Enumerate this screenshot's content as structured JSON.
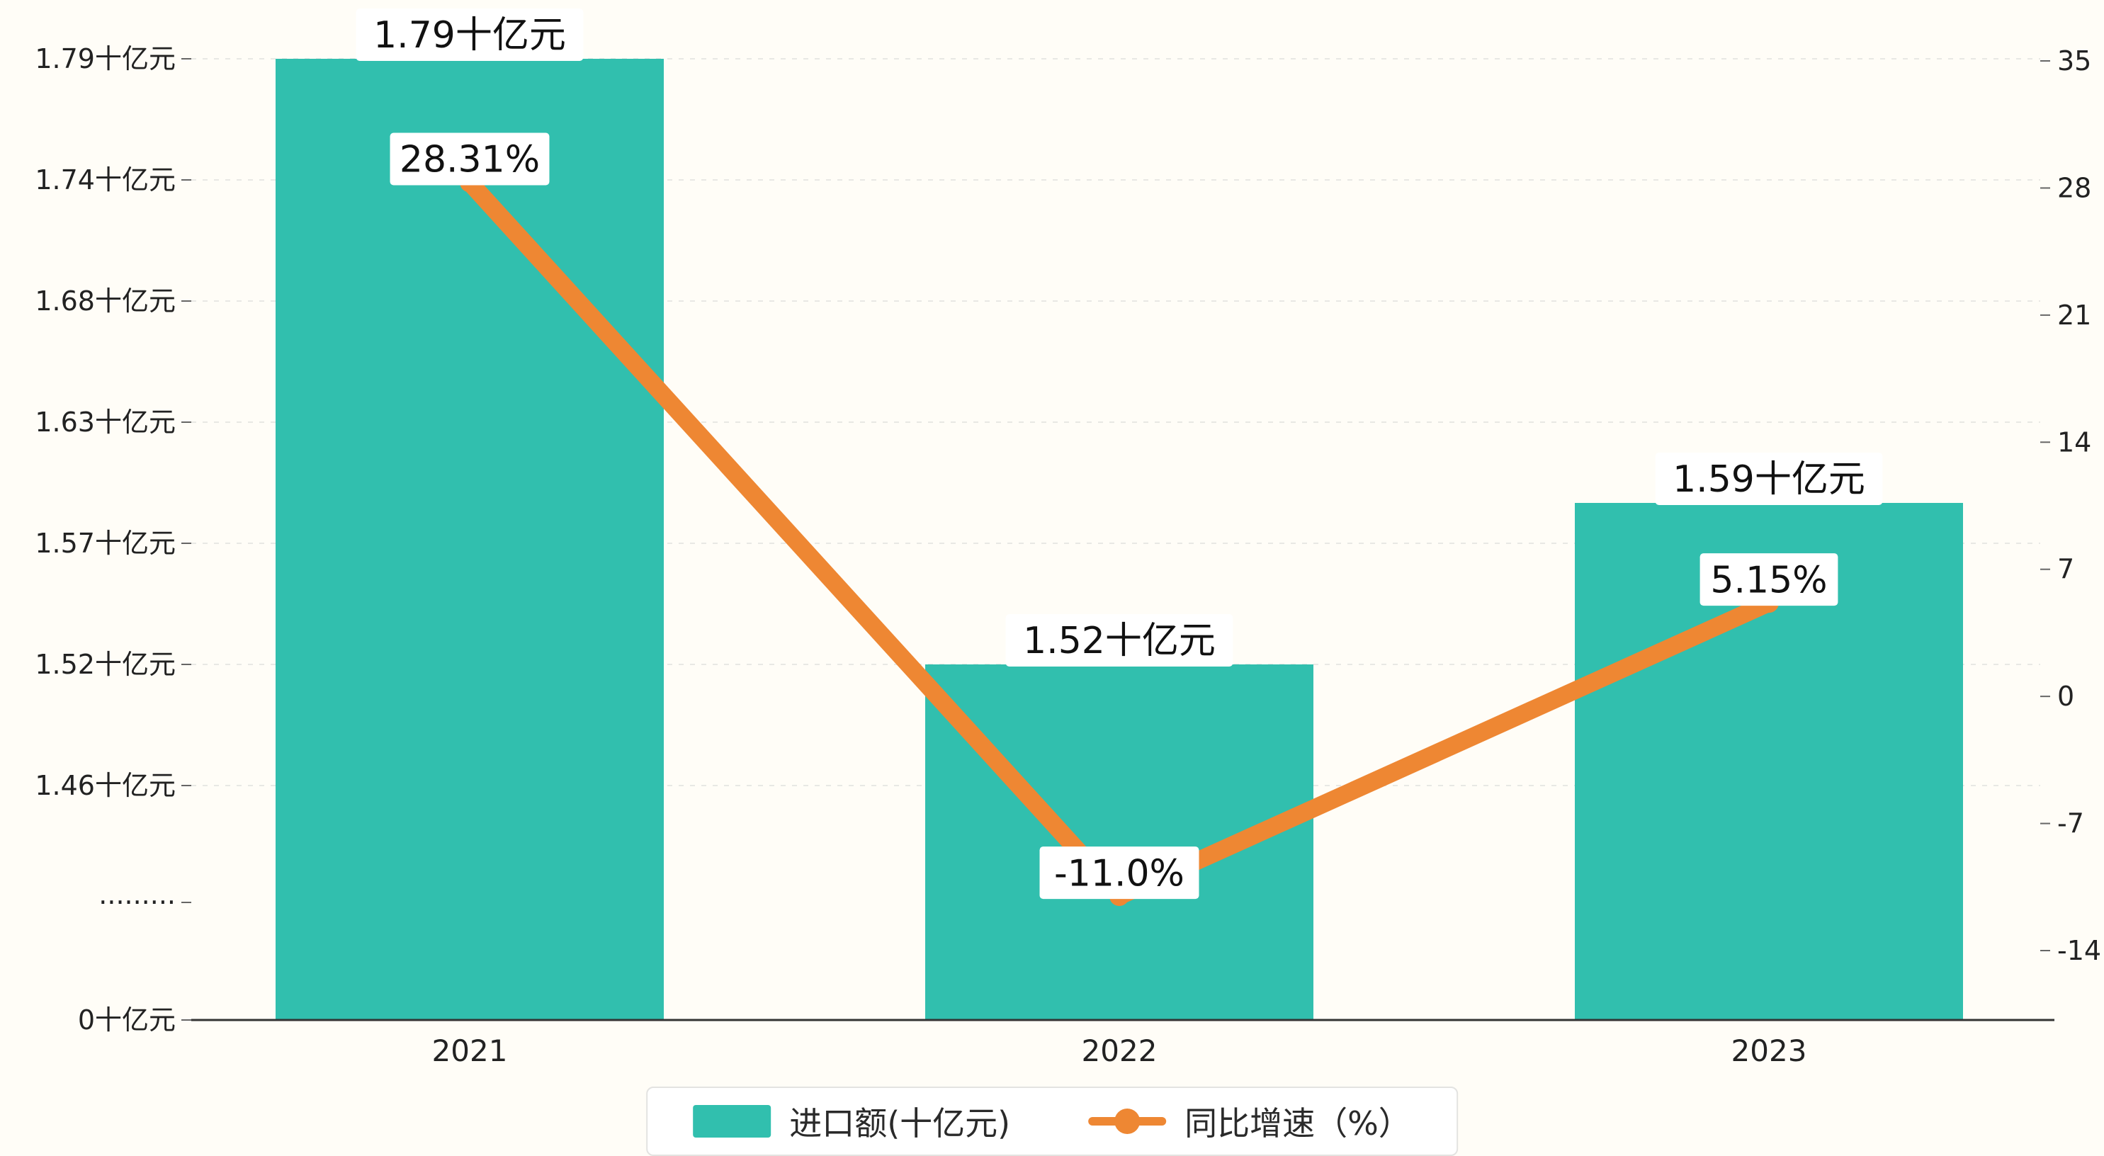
{
  "background": "#fffdf7",
  "colors": {
    "bar": "#31bfae",
    "line": "#ee8733",
    "grid": "#e8e8e4",
    "axis": "#333333",
    "tick_text": "#222222",
    "label_bg": "#ffffff",
    "text": "#111111"
  },
  "chart_data": {
    "type": "bar+line",
    "categories": [
      "2021",
      "2022",
      "2023"
    ],
    "series": [
      {
        "name": "进口额(十亿元)",
        "type": "bar",
        "axis": "left",
        "values": [
          1.79,
          1.52,
          1.59
        ],
        "labels": [
          "1.79十亿元",
          "1.52十亿元",
          "1.59十亿元"
        ]
      },
      {
        "name": "同比增速（%）",
        "type": "line",
        "axis": "right",
        "values": [
          28.31,
          -11.0,
          5.15
        ],
        "labels": [
          "28.31%",
          "-11.0%",
          "5.15%"
        ]
      }
    ],
    "left_axis": {
      "broken": true,
      "tick_labels": [
        "1.79十亿元",
        "1.74十亿元",
        "1.68十亿元",
        "1.63十亿元",
        "1.57十亿元",
        "1.52十亿元",
        "1.46十亿元",
        "·········",
        "0十亿元"
      ],
      "tick_values": [
        1.79,
        1.74,
        1.68,
        1.63,
        1.57,
        1.52,
        1.46,
        null,
        0
      ],
      "ylim": [
        0,
        1.79
      ]
    },
    "right_axis": {
      "tick_labels": [
        "35",
        "28",
        "21",
        "14",
        "7",
        "0",
        "-7",
        "-14"
      ],
      "tick_values": [
        35,
        28,
        21,
        14,
        7,
        0,
        -7,
        -14
      ],
      "max": 35,
      "min": -14
    },
    "grid": "horizontal-dashed",
    "legend_position": "bottom-center",
    "legend": [
      {
        "label": "进口额(十亿元)",
        "type": "bar"
      },
      {
        "label": "同比增速（%）",
        "type": "line"
      }
    ]
  }
}
